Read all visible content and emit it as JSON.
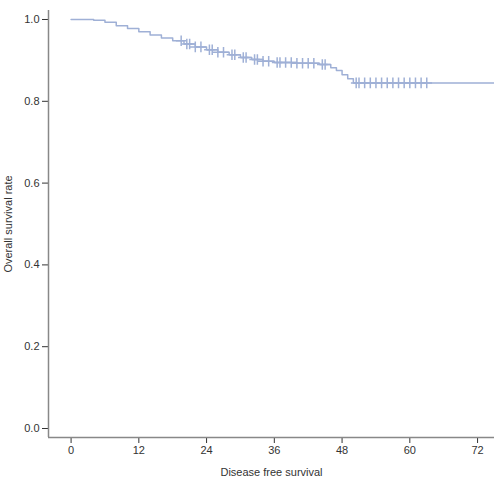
{
  "chart_data": {
    "type": "step",
    "x_label": "Disease free survival",
    "y_label": "Overall survival rate",
    "color": "#9fb0d6",
    "x": [
      0,
      4,
      6,
      8,
      10,
      12,
      14,
      16,
      18,
      20,
      22,
      24,
      26,
      28,
      30,
      32,
      34,
      36,
      40,
      44,
      46,
      47,
      48,
      49,
      50,
      75
    ],
    "values": [
      1.0,
      0.998,
      0.993,
      0.985,
      0.978,
      0.97,
      0.962,
      0.955,
      0.948,
      0.94,
      0.933,
      0.926,
      0.92,
      0.914,
      0.907,
      0.902,
      0.898,
      0.895,
      0.893,
      0.89,
      0.882,
      0.875,
      0.865,
      0.855,
      0.845,
      0.845
    ],
    "censored": {
      "marker": "plus",
      "x": [
        19.5,
        20.5,
        21,
        22,
        23,
        24.5,
        25,
        26,
        27,
        28.5,
        29,
        30.5,
        31,
        32.5,
        33,
        34,
        35,
        36.5,
        37,
        38,
        39,
        40,
        41,
        42,
        43,
        44.5,
        45,
        50.5,
        51,
        52,
        53,
        54,
        55,
        56,
        57,
        58,
        59,
        60,
        61,
        62,
        63
      ],
      "y": [
        0.948,
        0.94,
        0.94,
        0.933,
        0.933,
        0.926,
        0.926,
        0.92,
        0.92,
        0.914,
        0.914,
        0.907,
        0.907,
        0.902,
        0.902,
        0.898,
        0.898,
        0.895,
        0.895,
        0.895,
        0.895,
        0.893,
        0.893,
        0.893,
        0.893,
        0.89,
        0.89,
        0.845,
        0.845,
        0.845,
        0.845,
        0.845,
        0.845,
        0.845,
        0.845,
        0.845,
        0.845,
        0.845,
        0.845,
        0.845,
        0.845
      ]
    },
    "xlim": [
      -4,
      75
    ],
    "ylim": [
      -0.022,
      1.022
    ],
    "xticks": [
      0,
      12,
      24,
      36,
      48,
      60,
      72
    ],
    "yticks": [
      {
        "value": 0,
        "label": "0.0"
      },
      0.2,
      0.4,
      0.6,
      0.8,
      {
        "value": 1,
        "label": "1.0"
      }
    ],
    "grid": false
  }
}
